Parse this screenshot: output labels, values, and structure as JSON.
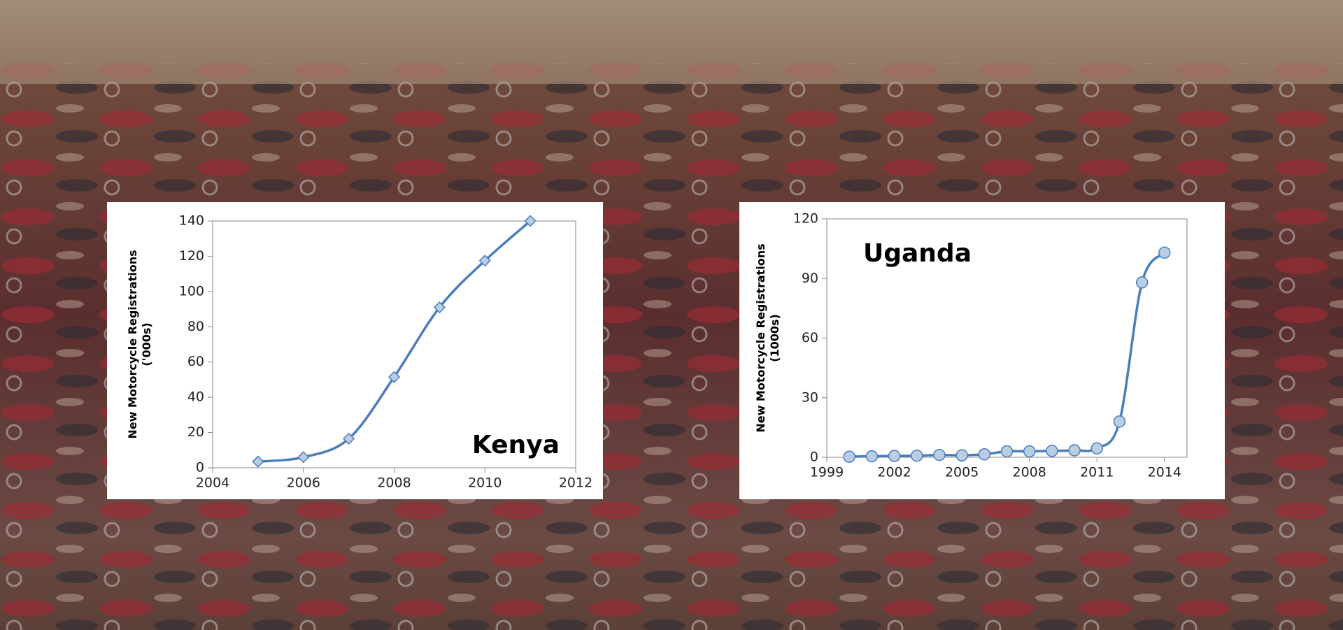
{
  "chart_data": [
    {
      "type": "line",
      "annotation": "Kenya",
      "y_label": [
        "New Motorcycle Registrations",
        "('000s)"
      ],
      "marker": "diamond",
      "color": "#4a7ebb",
      "x": [
        2005,
        2006,
        2007,
        2008,
        2009,
        2010,
        2011
      ],
      "values": [
        3.5,
        6,
        16.5,
        51.5,
        91,
        117.5,
        140
      ],
      "xlim": [
        2004,
        2012
      ],
      "xticks": [
        2004,
        2006,
        2008,
        2010,
        2012
      ],
      "ylim": [
        0,
        140
      ],
      "yticks": [
        0,
        20,
        40,
        60,
        80,
        100,
        120,
        140
      ]
    },
    {
      "type": "line",
      "annotation": "Uganda",
      "y_label": [
        "New Motorcycle Registrations",
        "(1000s)"
      ],
      "marker": "circle",
      "color": "#4a7ebb",
      "x": [
        2000,
        2001,
        2002,
        2003,
        2004,
        2005,
        2006,
        2007,
        2008,
        2009,
        2010,
        2011,
        2012,
        2013,
        2014
      ],
      "values": [
        0.3,
        0.5,
        0.7,
        0.8,
        1.2,
        1,
        1.5,
        3,
        3,
        3.2,
        3.5,
        4.5,
        18,
        88,
        103
      ],
      "xlim": [
        1999,
        2015
      ],
      "xticks": [
        1999,
        2002,
        2005,
        2008,
        2011,
        2014
      ],
      "ylim": [
        0,
        120
      ],
      "yticks": [
        0,
        30,
        60,
        90,
        120
      ]
    }
  ]
}
